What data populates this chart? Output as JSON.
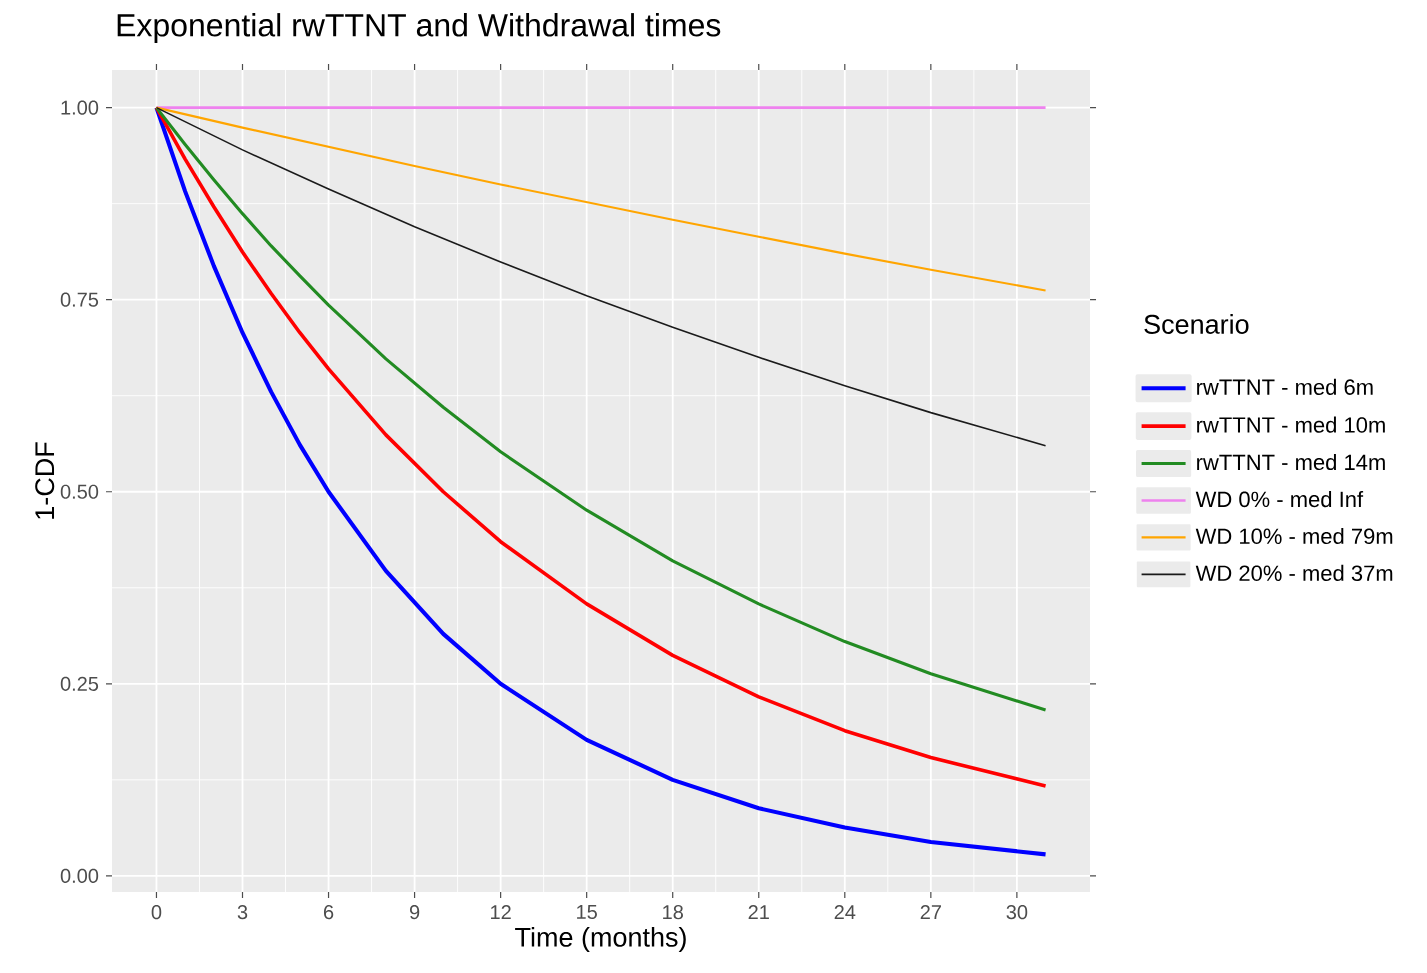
{
  "chart_data": {
    "type": "line",
    "title": "Exponential rwTTNT and Withdrawal times",
    "xlabel": "Time (months)",
    "ylabel": "1-CDF",
    "legend_title": "Scenario",
    "xlim": [
      -1.55,
      32.55
    ],
    "ylim": [
      -0.021,
      1.049
    ],
    "xticks": [
      0,
      3,
      6,
      9,
      12,
      15,
      18,
      21,
      24,
      27,
      30
    ],
    "yticks": [
      {
        "value": 0,
        "label": "0.00"
      },
      {
        "value": 0.25,
        "label": "0.25"
      },
      {
        "value": 0.5,
        "label": "0.50"
      },
      {
        "value": 0.75,
        "label": "0.75"
      },
      {
        "value": 1,
        "label": "1.00"
      }
    ],
    "grid": true,
    "legend": "right",
    "marker": "none",
    "line_style": "solid",
    "series": [
      {
        "name": "rwTTNT - med 6m",
        "color": "#0000ff",
        "x": [
          0,
          1,
          2,
          3,
          4,
          5,
          6,
          8,
          10,
          12,
          15,
          18,
          21,
          24,
          27,
          31
        ],
        "values": [
          1,
          0.891,
          0.794,
          0.707,
          0.63,
          0.561,
          0.5,
          0.397,
          0.315,
          0.25,
          0.177,
          0.125,
          0.088,
          0.063,
          0.044,
          0.028
        ]
      },
      {
        "name": "rwTTNT - med 10m",
        "color": "#ff0000",
        "x": [
          0,
          1,
          2,
          3,
          4,
          5,
          6,
          8,
          10,
          12,
          15,
          18,
          21,
          24,
          27,
          31
        ],
        "values": [
          1,
          0.933,
          0.871,
          0.812,
          0.758,
          0.707,
          0.66,
          0.574,
          0.5,
          0.435,
          0.354,
          0.287,
          0.233,
          0.189,
          0.154,
          0.117
        ]
      },
      {
        "name": "rwTTNT - med 14m",
        "color": "#228b22",
        "x": [
          0,
          1,
          2,
          3,
          4,
          5,
          6,
          8,
          10,
          12,
          15,
          18,
          21,
          24,
          27,
          31
        ],
        "values": [
          1,
          0.952,
          0.906,
          0.862,
          0.82,
          0.781,
          0.743,
          0.673,
          0.61,
          0.552,
          0.476,
          0.41,
          0.354,
          0.305,
          0.263,
          0.216
        ]
      },
      {
        "name": "WD 0% - med Inf",
        "color": "#ee82ee",
        "x": [
          0,
          31
        ],
        "values": [
          1,
          1
        ]
      },
      {
        "name": "WD 10% - med 79m",
        "color": "#ffa500",
        "x": [
          0,
          3,
          6,
          9,
          12,
          15,
          18,
          21,
          24,
          27,
          31
        ],
        "values": [
          1,
          0.974,
          0.949,
          0.924,
          0.9,
          0.877,
          0.854,
          0.832,
          0.81,
          0.789,
          0.762
        ]
      },
      {
        "name": "WD 20% - med 37m",
        "color": "#1a1a1a",
        "x": [
          0,
          3,
          6,
          9,
          12,
          15,
          18,
          21,
          24,
          27,
          31
        ],
        "values": [
          1,
          0.945,
          0.894,
          0.845,
          0.799,
          0.755,
          0.714,
          0.675,
          0.638,
          0.603,
          0.56
        ]
      }
    ]
  }
}
